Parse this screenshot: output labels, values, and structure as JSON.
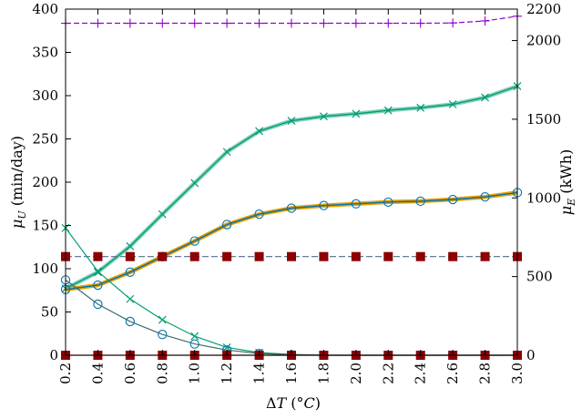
{
  "chart_data": {
    "type": "line",
    "x": [
      0.2,
      0.4,
      0.6,
      0.8,
      1.0,
      1.2,
      1.4,
      1.6,
      1.8,
      2.0,
      2.2,
      2.4,
      2.6,
      2.8,
      3.0
    ],
    "x_tick_labels": [
      "0.2",
      "0.4",
      "0.6",
      "0.8",
      "1.0",
      "1.2",
      "1.4",
      "1.6",
      "1.8",
      "2.0",
      "2.2",
      "2.4",
      "2.6",
      "2.8",
      "3.0"
    ],
    "xlim": [
      0.2,
      3.0
    ],
    "xlabel": {
      "prefix": "Δ",
      "var": "T",
      "units_open": " (",
      "units_var": "°C",
      "units_close": ")"
    },
    "ylim_left": [
      0,
      400
    ],
    "yticks_left": [
      0,
      50,
      100,
      150,
      200,
      250,
      300,
      350,
      400
    ],
    "ylabel_left": {
      "var": "μ",
      "sub": "U",
      "units": " (min/day)"
    },
    "ylim_right": [
      0,
      2200
    ],
    "yticks_right": [
      0,
      500,
      1000,
      1500,
      2000,
      2200
    ],
    "ylabel_right": {
      "var": "μ",
      "sub": "E",
      "units": " (kWh)"
    },
    "grid": false,
    "series": [
      {
        "axis": "right",
        "marker": "plus",
        "color": "#9400d3",
        "dash": "6,3",
        "values": [
          2110,
          2110,
          2110,
          2110,
          2110,
          2110,
          2110,
          2110,
          2110,
          2110,
          2110,
          2110,
          2112,
          2125,
          2155
        ]
      },
      {
        "axis": "left",
        "marker": "x",
        "color": "#009e73",
        "halo": "#8ad0bd",
        "values": [
          77,
          96,
          126,
          163,
          199,
          235,
          259,
          271,
          276,
          279,
          283,
          286,
          290,
          298,
          311
        ]
      },
      {
        "axis": "left",
        "marker": "circle",
        "color": "#0072b2",
        "halo": "#e69f00",
        "values": [
          76,
          81,
          96,
          114,
          132,
          151,
          163,
          170,
          173,
          175,
          177,
          178,
          180,
          183,
          188
        ]
      },
      {
        "axis": "left",
        "marker": "square",
        "color": "#8b0000",
        "dash": "7,3",
        "line": "#556b8d",
        "values": [
          114,
          114,
          114,
          114,
          114,
          114,
          114,
          114,
          114,
          114,
          114,
          114,
          114,
          114,
          114
        ]
      },
      {
        "axis": "left",
        "marker": "x",
        "color": "#009e73",
        "values": [
          147,
          97,
          65,
          41,
          22,
          9,
          3,
          1,
          0,
          0,
          0,
          0,
          0,
          0,
          0
        ]
      },
      {
        "axis": "left",
        "marker": "circle",
        "color": "#0072b2",
        "line": "#3a6e66",
        "values": [
          87,
          59,
          39,
          24,
          13,
          6,
          2,
          0.5,
          0,
          0,
          0,
          0,
          0,
          0,
          0
        ]
      },
      {
        "axis": "left",
        "marker": "square",
        "color": "#8b0000",
        "values": [
          0,
          0,
          0,
          0,
          0,
          0,
          0,
          0,
          0,
          0,
          0,
          0,
          0,
          0,
          0
        ]
      }
    ]
  }
}
